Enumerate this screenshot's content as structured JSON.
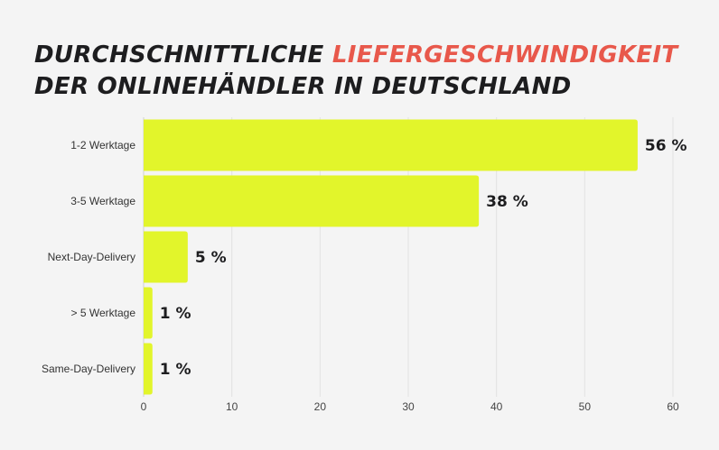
{
  "header": {
    "title_part1": "DURCHSCHNITTLICHE ",
    "title_highlight": "LIEFERGESCHWINDIGKEIT",
    "title_line2": "DER ONLINEHÄNDLER IN DEUTSCHLAND"
  },
  "colors": {
    "bar": "#e2f52b",
    "highlight": "#e8584b",
    "text": "#1d1d1f",
    "grid": "#e2e2e2",
    "background": "#f4f4f4"
  },
  "chart_data": {
    "type": "bar",
    "orientation": "horizontal",
    "title": "DURCHSCHNITTLICHE LIEFERGESCHWINDIGKEIT DER ONLINEHÄNDLER IN DEUTSCHLAND",
    "categories": [
      "1-2 Werktage",
      "3-5 Werktage",
      "Next-Day-Delivery",
      "> 5 Werktage",
      "Same-Day-Delivery"
    ],
    "values": [
      56,
      38,
      5,
      1,
      1
    ],
    "data_labels": [
      "56 %",
      "38 %",
      "5 %",
      "1 %",
      "1 %"
    ],
    "xlim": [
      0,
      60
    ],
    "xticks": [
      0,
      10,
      20,
      30,
      40,
      50,
      60
    ],
    "xlabel": "",
    "ylabel": "",
    "grid": true,
    "legend": "none"
  }
}
